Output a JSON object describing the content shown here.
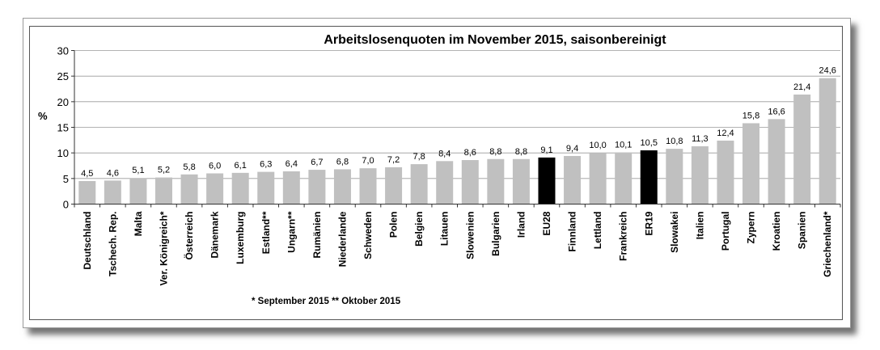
{
  "chart_data": {
    "type": "bar",
    "title": "Arbeitslosenquoten im November 2015, saisonbereinigt",
    "ylabel": "%",
    "ylim": [
      0,
      30
    ],
    "yticks": [
      0,
      5,
      10,
      15,
      20,
      25,
      30
    ],
    "grid": true,
    "categories": [
      "Deutschland",
      "Tschech. Rep.",
      "Malta",
      "Ver. Königreich*",
      "Österreich",
      "Dänemark",
      "Luxemburg",
      "Estland**",
      "Ungarn**",
      "Rumänien",
      "Niederlande",
      "Schweden",
      "Polen",
      "Belgien",
      "Litauen",
      "Slowenien",
      "Bulgarien",
      "Irland",
      "EU28",
      "Finnland",
      "Lettland",
      "Frankreich",
      "ER19",
      "Slowakei",
      "Italien",
      "Portugal",
      "Zypern",
      "Kroatien",
      "Spanien",
      "Griechenland*"
    ],
    "values": [
      4.5,
      4.6,
      5.1,
      5.2,
      5.8,
      6.0,
      6.1,
      6.3,
      6.4,
      6.7,
      6.8,
      7.0,
      7.2,
      7.8,
      8.4,
      8.6,
      8.8,
      8.8,
      9.1,
      9.4,
      10.0,
      10.1,
      10.5,
      10.8,
      11.3,
      12.4,
      15.8,
      16.6,
      21.4,
      24.6
    ],
    "value_labels": [
      "4,5",
      "4,6",
      "5,1",
      "5,2",
      "5,8",
      "6,0",
      "6,1",
      "6,3",
      "6,4",
      "6,7",
      "6,8",
      "7,0",
      "7,2",
      "7,8",
      "8,4",
      "8,6",
      "8,8",
      "8,8",
      "9,1",
      "9,4",
      "10,0",
      "10,1",
      "10,5",
      "10,8",
      "11,3",
      "12,4",
      "15,8",
      "16,6",
      "21,4",
      "24,6"
    ],
    "highlighted": [
      "EU28",
      "ER19"
    ],
    "bar_color": "#c0c0c0",
    "highlight_color": "#000000",
    "footnote": "*  September 2015   **  Oktober 2015"
  }
}
